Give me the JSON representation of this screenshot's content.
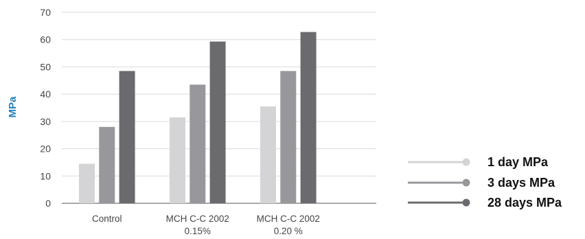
{
  "chart_data": {
    "type": "bar",
    "ylabel": "MPa",
    "ylabel_color": "#1f7fbf",
    "xlabel": "",
    "ylim": [
      0,
      70
    ],
    "yticks": [
      0,
      10,
      20,
      30,
      40,
      50,
      60,
      70
    ],
    "grid": true,
    "legend_position": "bottom-right",
    "categories": [
      [
        "Control"
      ],
      [
        "MCH C-C 2002",
        "0.15%"
      ],
      [
        "MCH C-C 2002",
        "0.20 %"
      ]
    ],
    "series": [
      {
        "name": "1 day MPa",
        "color": "#d4d4d6",
        "values": [
          14.5,
          31.5,
          35.5
        ]
      },
      {
        "name": "3 days MPa",
        "color": "#98989c",
        "values": [
          28,
          43.5,
          48.5
        ]
      },
      {
        "name": "28 days MPa",
        "color": "#6b6b6f",
        "values": [
          48.5,
          59.3,
          62.8
        ]
      }
    ]
  }
}
